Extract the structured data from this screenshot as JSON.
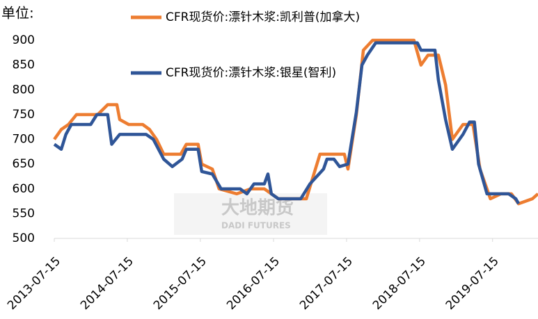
{
  "chart_data": {
    "type": "line",
    "unit_label": "单位:",
    "watermark": {
      "cn": "大地期货",
      "en": "DADI FUTURES"
    },
    "xlim": [
      "2013-07-15",
      "2020-02-27"
    ],
    "xticks": [
      "2013-07-15",
      "2014-07-15",
      "2015-07-15",
      "2016-07-15",
      "2017-07-15",
      "2018-07-15",
      "2019-07-15"
    ],
    "ylim": [
      500,
      900
    ],
    "yticks": [
      500,
      550,
      600,
      650,
      700,
      750,
      800,
      850,
      900
    ],
    "grid": false,
    "series": [
      {
        "name": "CFR现货价:漂针木浆:凯利普(加拿大)",
        "color": "#ed7d31",
        "x": [
          "2013-07-15",
          "2013-08-19",
          "2013-09-24",
          "2013-11-03",
          "2014-01-05",
          "2014-02-17",
          "2014-04-08",
          "2014-05-24",
          "2014-06-07",
          "2014-07-22",
          "2014-09-30",
          "2014-11-03",
          "2014-12-08",
          "2015-01-13",
          "2015-04-08",
          "2015-05-06",
          "2015-07-04",
          "2015-07-22",
          "2015-09-13",
          "2015-10-17",
          "2016-01-13",
          "2016-03-22",
          "2016-05-30",
          "2016-08-08",
          "2016-12-26",
          "2017-03-04",
          "2017-07-04",
          "2017-07-22",
          "2017-09-02",
          "2017-10-07",
          "2017-11-22",
          "2018-06-17",
          "2018-07-22",
          "2018-08-26",
          "2018-10-17",
          "2018-11-22",
          "2018-12-26",
          "2019-02-17",
          "2019-04-08",
          "2019-05-13",
          "2019-07-04",
          "2019-08-26",
          "2019-10-17",
          "2019-11-22",
          "2020-01-30",
          "2020-02-27"
        ],
        "values": [
          700,
          720,
          730,
          750,
          750,
          750,
          770,
          770,
          740,
          730,
          730,
          720,
          700,
          670,
          670,
          690,
          690,
          650,
          640,
          600,
          590,
          600,
          600,
          580,
          580,
          670,
          670,
          640,
          750,
          880,
          900,
          900,
          850,
          870,
          870,
          810,
          700,
          730,
          730,
          640,
          580,
          590,
          590,
          570,
          580,
          590
        ]
      },
      {
        "name": "CFR现货价:漂针木浆:银星(智利)",
        "color": "#2f5597",
        "x": [
          "2013-07-15",
          "2013-08-19",
          "2013-09-11",
          "2013-10-08",
          "2014-01-13",
          "2014-02-13",
          "2014-04-08",
          "2014-04-28",
          "2014-06-07",
          "2014-10-17",
          "2014-11-22",
          "2015-01-13",
          "2015-02-25",
          "2015-04-15",
          "2015-05-06",
          "2015-07-04",
          "2015-07-22",
          "2015-09-13",
          "2015-10-27",
          "2016-01-30",
          "2016-03-04",
          "2016-04-08",
          "2016-05-30",
          "2016-06-17",
          "2016-07-04",
          "2016-08-08",
          "2016-11-28",
          "2017-01-13",
          "2017-03-22",
          "2017-04-08",
          "2017-05-13",
          "2017-06-10",
          "2017-07-22",
          "2017-09-02",
          "2017-09-30",
          "2017-10-27",
          "2017-12-08",
          "2018-07-04",
          "2018-07-22",
          "2018-09-30",
          "2018-10-17",
          "2018-11-22",
          "2018-12-26",
          "2019-02-17",
          "2019-03-22",
          "2019-04-15",
          "2019-05-06",
          "2019-06-17",
          "2019-10-03",
          "2019-11-08",
          "2019-11-22"
        ],
        "values": [
          690,
          680,
          710,
          730,
          730,
          750,
          750,
          690,
          710,
          710,
          700,
          660,
          645,
          660,
          680,
          680,
          635,
          630,
          600,
          600,
          590,
          610,
          610,
          630,
          590,
          580,
          580,
          610,
          640,
          660,
          660,
          645,
          650,
          755,
          850,
          870,
          895,
          895,
          880,
          880,
          820,
          740,
          680,
          710,
          735,
          735,
          650,
          590,
          590,
          580,
          570
        ]
      }
    ]
  }
}
